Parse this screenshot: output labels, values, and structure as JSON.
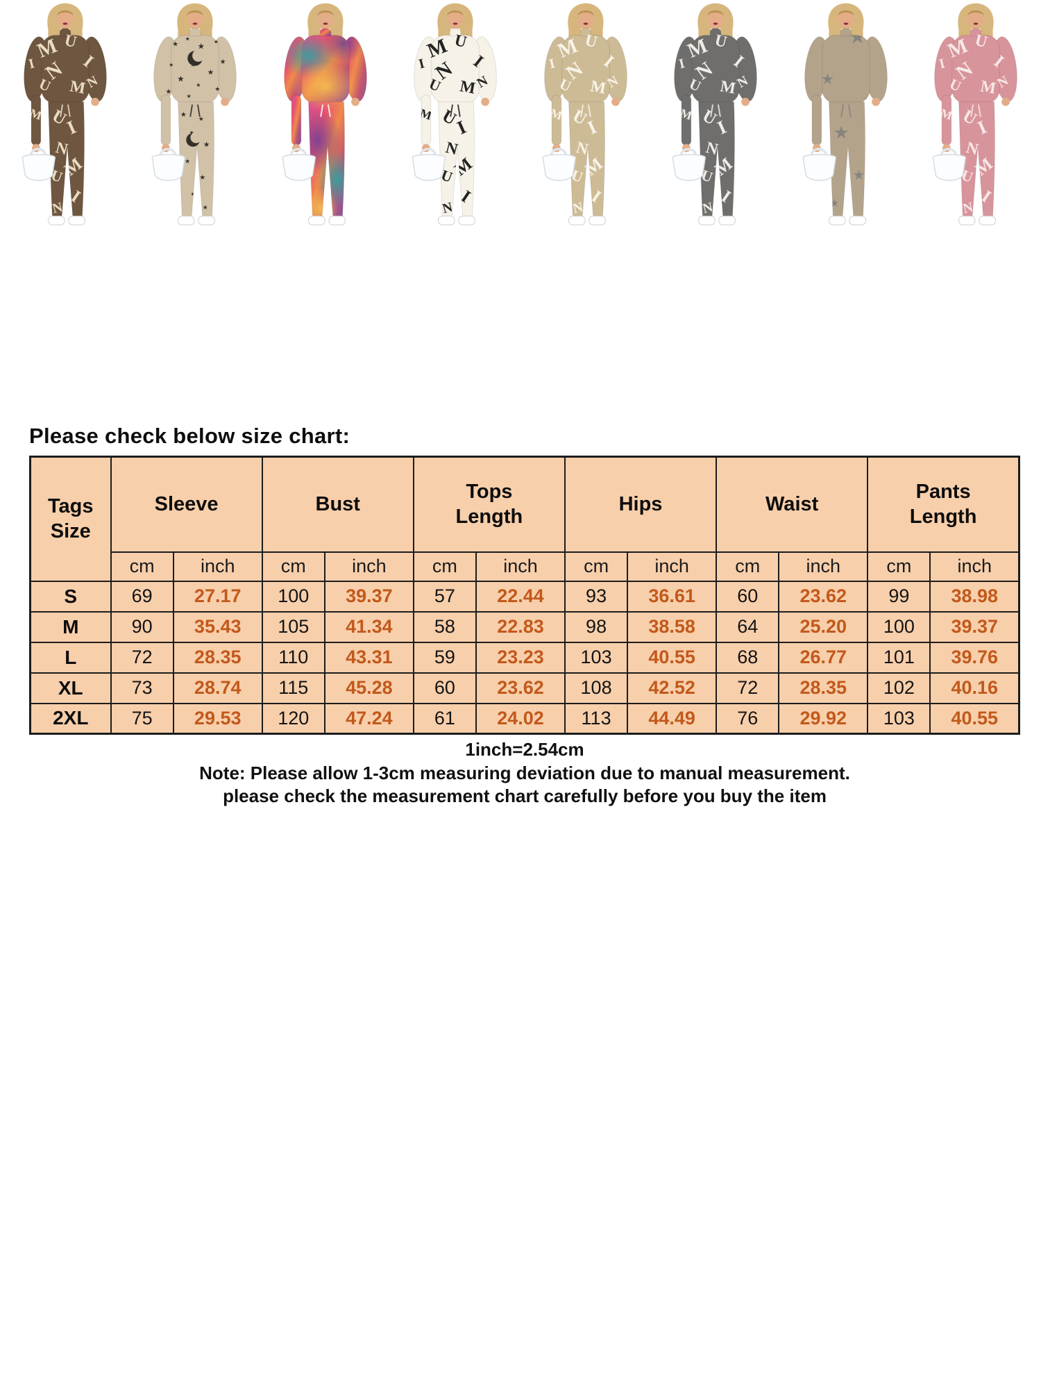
{
  "title": "Please check below size chart:",
  "pattern_glyphs": [
    "M",
    "U",
    "I",
    "N"
  ],
  "products": [
    {
      "name": "brown-letter-print",
      "pattern": "letters",
      "base": "#6e5640",
      "pattern_color": "#eadcc1"
    },
    {
      "name": "khaki-star-moon-print",
      "pattern": "stars-moons",
      "base": "#d0c1a7",
      "pattern_color": "#33302b"
    },
    {
      "name": "tie-dye-print",
      "pattern": "tie-dye",
      "base": "#e8536f",
      "pattern_color": "#ffffff"
    },
    {
      "name": "cream-letter-print",
      "pattern": "letters",
      "base": "#f6f2e8",
      "pattern_color": "#232323"
    },
    {
      "name": "khaki-letter-print",
      "pattern": "letters",
      "base": "#cdbb96",
      "pattern_color": "#f8f3e7"
    },
    {
      "name": "gray-letter-print",
      "pattern": "letters",
      "base": "#6f6e6c",
      "pattern_color": "#efece6"
    },
    {
      "name": "tan-star-print",
      "pattern": "stars",
      "base": "#b4a38b",
      "pattern_color": "#85847e"
    },
    {
      "name": "pink-letter-print",
      "pattern": "letters",
      "base": "#d8949b",
      "pattern_color": "#f7e8e7"
    }
  ],
  "size_chart": {
    "corner_header": "Tags\nSize",
    "groups": [
      "Sleeve",
      "Bust",
      "Tops\nLength",
      "Hips",
      "Waist",
      "Pants\nLength"
    ],
    "unit_cm": "cm",
    "unit_inch": "inch",
    "rows": [
      {
        "size": "S",
        "values": [
          "69",
          "27.17",
          "100",
          "39.37",
          "57",
          "22.44",
          "93",
          "36.61",
          "60",
          "23.62",
          "99",
          "38.98"
        ]
      },
      {
        "size": "M",
        "values": [
          "90",
          "35.43",
          "105",
          "41.34",
          "58",
          "22.83",
          "98",
          "38.58",
          "64",
          "25.20",
          "100",
          "39.37"
        ]
      },
      {
        "size": "L",
        "values": [
          "72",
          "28.35",
          "110",
          "43.31",
          "59",
          "23.23",
          "103",
          "40.55",
          "68",
          "26.77",
          "101",
          "39.76"
        ]
      },
      {
        "size": "XL",
        "values": [
          "73",
          "28.74",
          "115",
          "45.28",
          "60",
          "23.62",
          "108",
          "42.52",
          "72",
          "28.35",
          "102",
          "40.16"
        ]
      },
      {
        "size": "2XL",
        "values": [
          "75",
          "29.53",
          "120",
          "47.24",
          "61",
          "24.02",
          "113",
          "44.49",
          "76",
          "29.92",
          "103",
          "40.55"
        ]
      }
    ],
    "conversion": "1inch=2.54cm",
    "note_line1": "Note: Please allow 1-3cm measuring deviation due to manual measurement.",
    "note_line2": "please check the measurement chart carefully before you buy the item"
  },
  "colors": {
    "table_bg": "#f8cfab",
    "table_border": "#1c1c1c",
    "inch_text": "#c2591c",
    "cm_text": "#141414"
  }
}
